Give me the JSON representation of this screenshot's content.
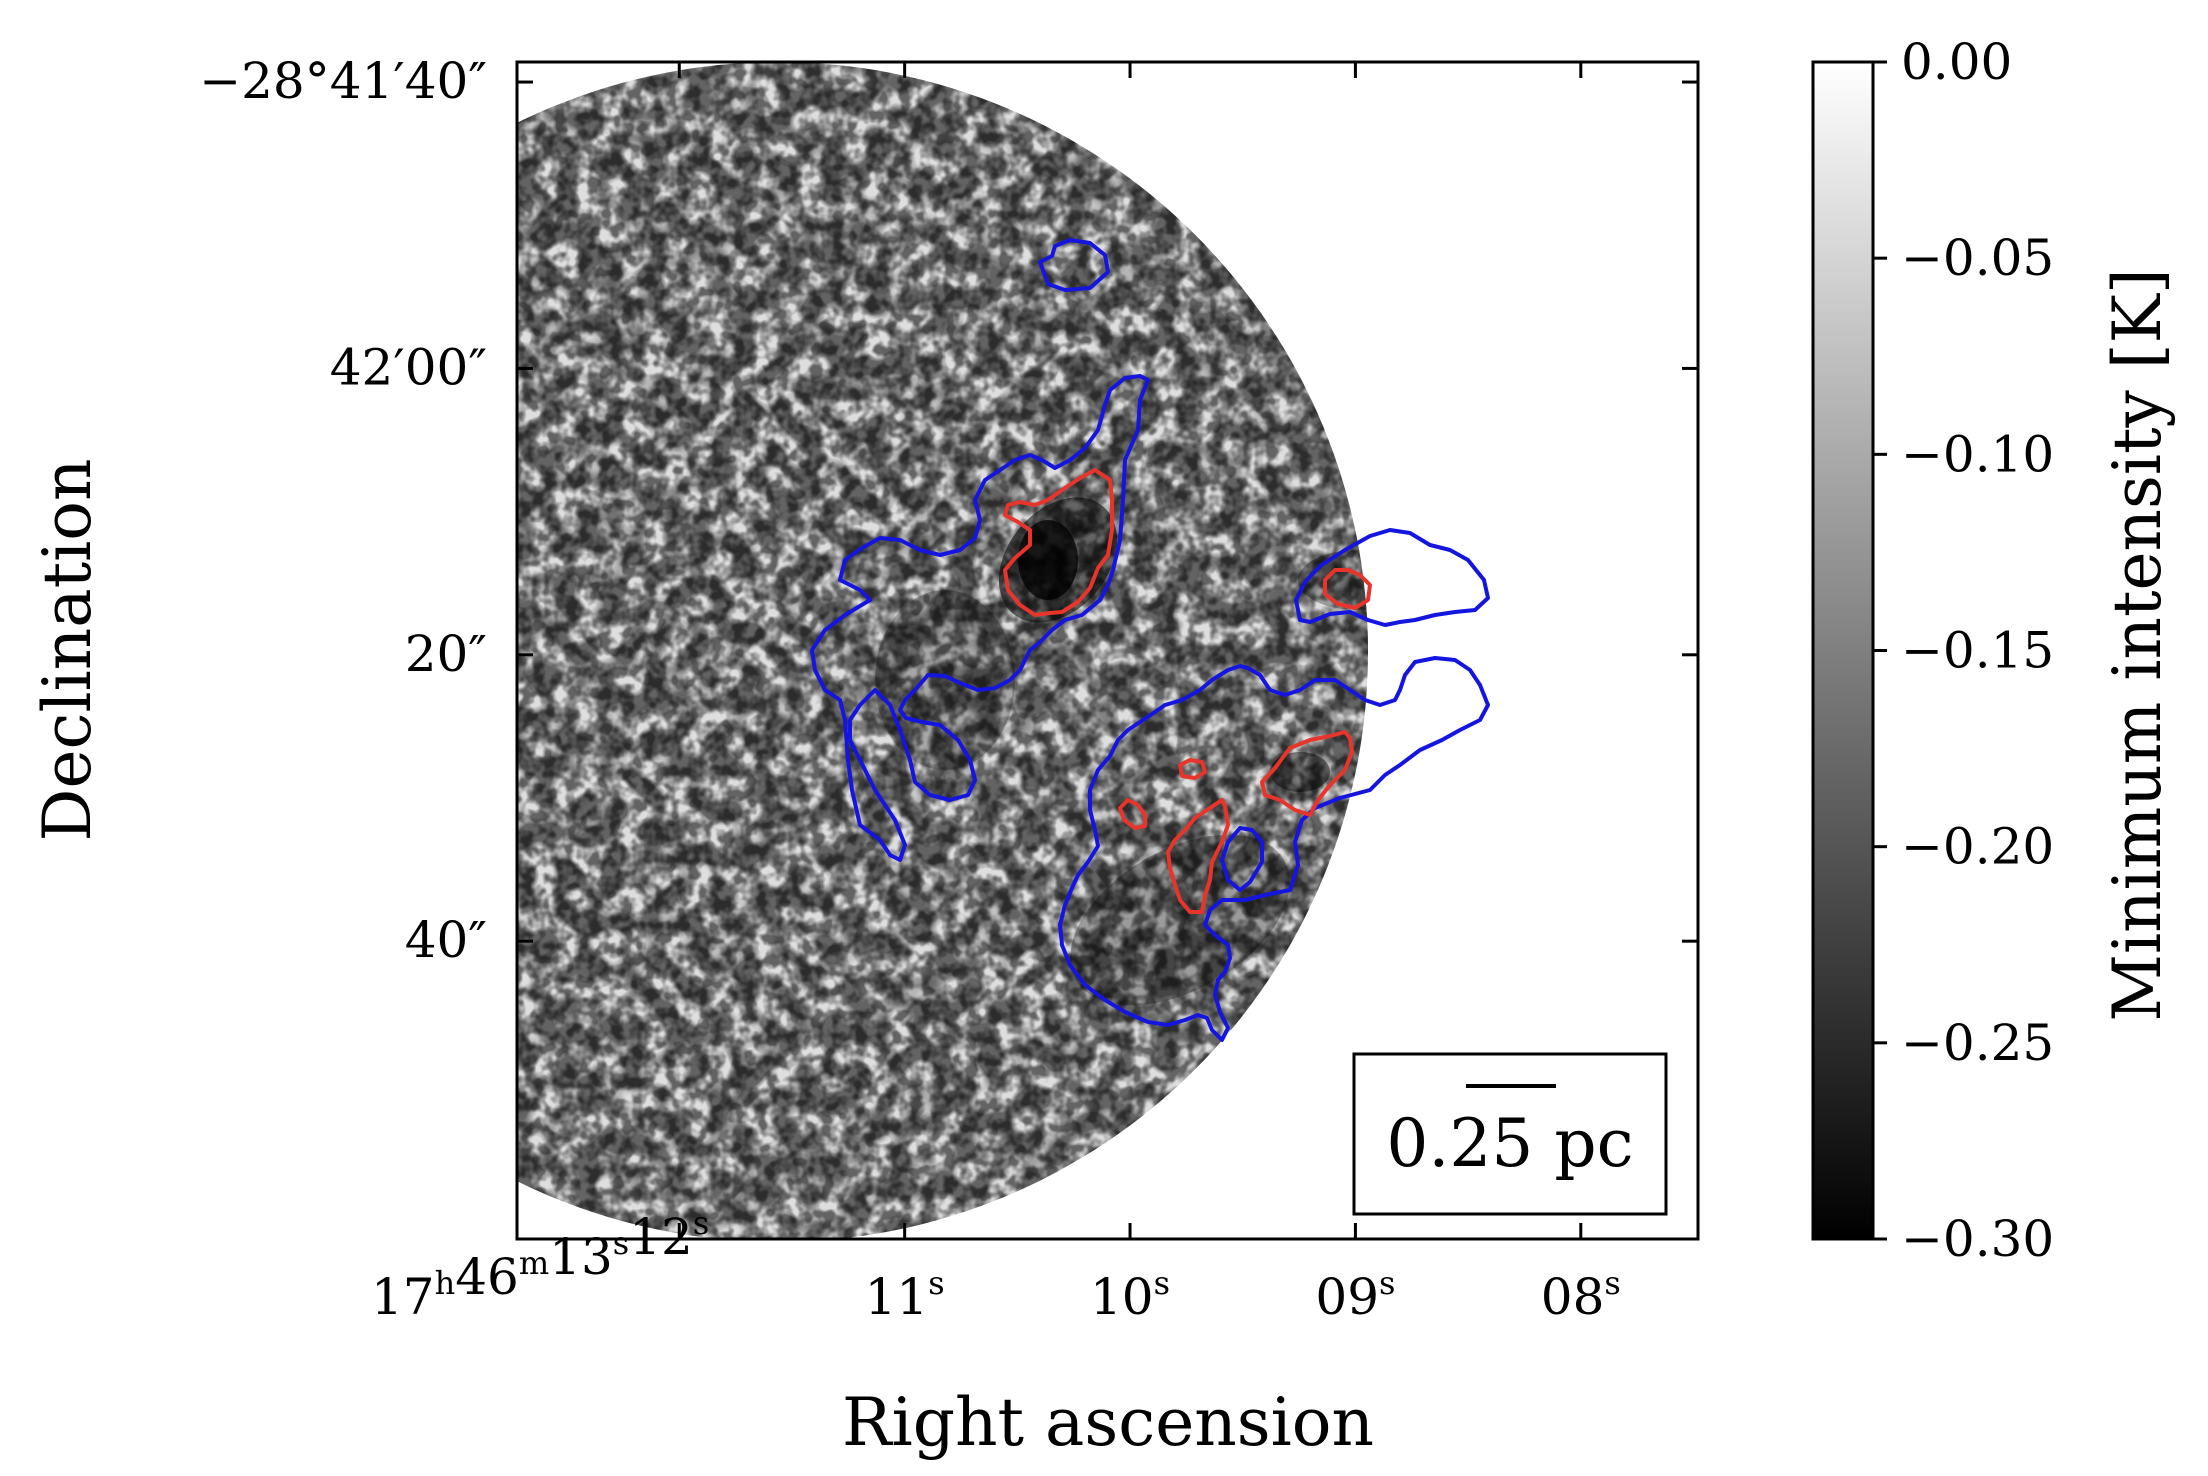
{
  "chart_data": {
    "type": "heatmap",
    "title": "",
    "xlabel": "Right ascension",
    "ylabel": "Declination",
    "x_ticks": [
      {
        "pre": "17",
        "sup1": "h",
        "mid": "46",
        "sup2": "m",
        "mid2": "13",
        "sup3": "s",
        "tail": "12",
        "sup4": "s",
        "ra_sec": 12
      },
      {
        "pre": "11",
        "sup1": "s",
        "ra_sec": 11
      },
      {
        "pre": "10",
        "sup1": "s",
        "ra_sec": 10
      },
      {
        "pre": "09",
        "sup1": "s",
        "ra_sec": 9
      },
      {
        "pre": "08",
        "sup1": "s",
        "ra_sec": 8
      }
    ],
    "y_ticks": [
      {
        "label": "−28°41′40″",
        "dec_arcsec": 40
      },
      {
        "label": "42′00″",
        "dec_arcsec": 60
      },
      {
        "label": "20″",
        "dec_arcsec": 80
      },
      {
        "label": "40″",
        "dec_arcsec": 100
      }
    ],
    "x_range_sec": [
      12.72,
      7.48
    ],
    "y_range_arcsec": [
      38.6,
      120.8
    ],
    "colorbar": {
      "label": "Minimum intensity [K]",
      "range": [
        -0.3,
        0.0
      ],
      "ticks": [
        "0.00",
        "−0.05",
        "−0.10",
        "−0.15",
        "−0.20",
        "−0.25",
        "−0.30"
      ],
      "tick_values": [
        0.0,
        -0.05,
        -0.1,
        -0.15,
        -0.2,
        -0.25,
        -0.3
      ],
      "colormap": "gray"
    },
    "contours": [
      {
        "name": "blue",
        "color": "#1515e0"
      },
      {
        "name": "red",
        "color": "#e8352b"
      }
    ],
    "scalebar": {
      "label": "0.25 pc"
    },
    "grid": false
  }
}
